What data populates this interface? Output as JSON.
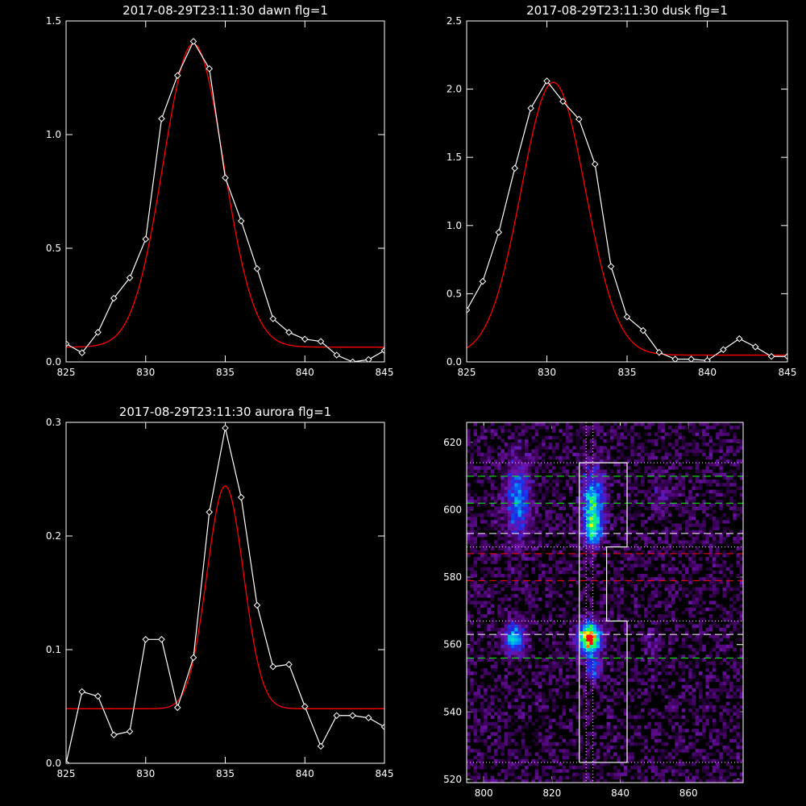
{
  "colors": {
    "background": "#000000",
    "observed": "#ffffff",
    "fit": "#ff0000",
    "grid_green": "#00ff00",
    "grid_red": "#ff0000",
    "guide": "#ffff66"
  },
  "chart_data": [
    {
      "type": "line",
      "title": "2017-08-29T23:11:30 dawn flg=1",
      "xlim": [
        825,
        845
      ],
      "ylim": [
        0,
        1.5
      ],
      "xticks": [
        "825",
        "830",
        "835",
        "840",
        "845"
      ],
      "yticks": [
        "0.0",
        "0.5",
        "1.0",
        "1.5"
      ],
      "series": [
        {
          "style": "observed",
          "x": [
            825,
            826,
            827,
            828,
            829,
            830,
            831,
            832,
            833,
            834,
            835,
            836,
            837,
            838,
            839,
            840,
            841,
            842,
            843,
            844,
            845
          ],
          "y": [
            0.08,
            0.04,
            0.13,
            0.28,
            0.37,
            0.54,
            1.07,
            1.26,
            1.41,
            1.29,
            0.81,
            0.62,
            0.41,
            0.19,
            0.13,
            0.1,
            0.09,
            0.03,
            0.0,
            0.01,
            0.05
          ]
        },
        {
          "style": "fit",
          "model": "gaussian",
          "peak": 1.4,
          "center": 833.0,
          "sigma": 1.9,
          "baseline": 0.065,
          "x_range": [
            825,
            845
          ]
        }
      ]
    },
    {
      "type": "line",
      "title": "2017-08-29T23:11:30 dusk flg=1",
      "xlim": [
        825,
        845
      ],
      "ylim": [
        0,
        2.5
      ],
      "xticks": [
        "825",
        "830",
        "835",
        "840",
        "845"
      ],
      "yticks": [
        "0.0",
        "0.5",
        "1.0",
        "1.5",
        "2.0",
        "2.5"
      ],
      "series": [
        {
          "style": "observed",
          "x": [
            825,
            826,
            827,
            828,
            829,
            830,
            831,
            832,
            833,
            834,
            835,
            836,
            837,
            838,
            839,
            840,
            841,
            842,
            843,
            844,
            845
          ],
          "y": [
            0.38,
            0.59,
            0.95,
            1.42,
            1.86,
            2.06,
            1.91,
            1.78,
            1.45,
            0.7,
            0.33,
            0.23,
            0.07,
            0.02,
            0.02,
            0.01,
            0.09,
            0.17,
            0.11,
            0.04,
            0.04
          ]
        },
        {
          "style": "fit",
          "model": "gaussian",
          "peak": 2.05,
          "center": 830.4,
          "sigma": 2.0,
          "baseline": 0.05,
          "x_range": [
            825,
            845
          ]
        }
      ]
    },
    {
      "type": "line",
      "title": "2017-08-29T23:11:30 aurora flg=1",
      "xlim": [
        825,
        845
      ],
      "ylim": [
        0,
        0.3
      ],
      "xticks": [
        "825",
        "830",
        "835",
        "840",
        "845"
      ],
      "yticks": [
        "0.0",
        "0.1",
        "0.2",
        "0.3"
      ],
      "series": [
        {
          "style": "observed",
          "x": [
            825,
            826,
            827,
            828,
            829,
            830,
            831,
            832,
            833,
            834,
            835,
            836,
            837,
            838,
            839,
            840,
            841,
            842,
            843,
            844,
            845
          ],
          "y": [
            0.0,
            0.063,
            0.059,
            0.025,
            0.028,
            0.109,
            0.109,
            0.049,
            0.093,
            0.221,
            0.295,
            0.234,
            0.139,
            0.085,
            0.087,
            0.05,
            0.015,
            0.042,
            0.042,
            0.04,
            0.032
          ]
        },
        {
          "style": "fit",
          "model": "gaussian",
          "peak": 0.244,
          "center": 835.0,
          "sigma": 1.15,
          "baseline": 0.048,
          "x_range": [
            825,
            845
          ]
        }
      ]
    },
    {
      "type": "heatmap",
      "title": "",
      "xlim": [
        795,
        876
      ],
      "ylim": [
        519,
        626
      ],
      "xticks": [
        "800",
        "820",
        "840",
        "860"
      ],
      "yticks": [
        "520",
        "540",
        "560",
        "580",
        "600",
        "620"
      ],
      "seed": 7,
      "hotspots": [
        {
          "x": 810,
          "y": 603,
          "sx": 2.5,
          "sy": 8,
          "amp": 0.45
        },
        {
          "x": 832,
          "y": 602,
          "sx": 2.2,
          "sy": 7,
          "amp": 0.6
        },
        {
          "x": 832,
          "y": 594,
          "sx": 2.0,
          "sy": 3,
          "amp": 0.4
        },
        {
          "x": 809,
          "y": 562,
          "sx": 2.2,
          "sy": 3.5,
          "amp": 0.5
        },
        {
          "x": 831,
          "y": 562,
          "sx": 2.4,
          "sy": 3.2,
          "amp": 1.0
        },
        {
          "x": 832,
          "y": 553,
          "sx": 1.5,
          "sy": 2.5,
          "amp": 0.42
        },
        {
          "x": 852,
          "y": 604,
          "sx": 2.0,
          "sy": 4,
          "amp": 0.15
        },
        {
          "x": 849,
          "y": 560,
          "sx": 2.0,
          "sy": 3,
          "amp": 0.12
        }
      ],
      "extraction_box": [
        [
          828,
          525
        ],
        [
          842,
          525
        ],
        [
          842,
          567
        ],
        [
          836,
          567
        ],
        [
          836,
          589
        ],
        [
          842,
          589
        ],
        [
          842,
          614
        ],
        [
          828,
          614
        ],
        [
          828,
          525
        ]
      ],
      "green_dashed_y": [
        610,
        602,
        556
      ],
      "white_dashed_y": [
        593,
        563
      ],
      "red_dashed_y": [
        587,
        579
      ],
      "dotted_y": [
        614,
        589,
        567,
        525
      ],
      "dotted_x": [
        830,
        832
      ]
    }
  ]
}
